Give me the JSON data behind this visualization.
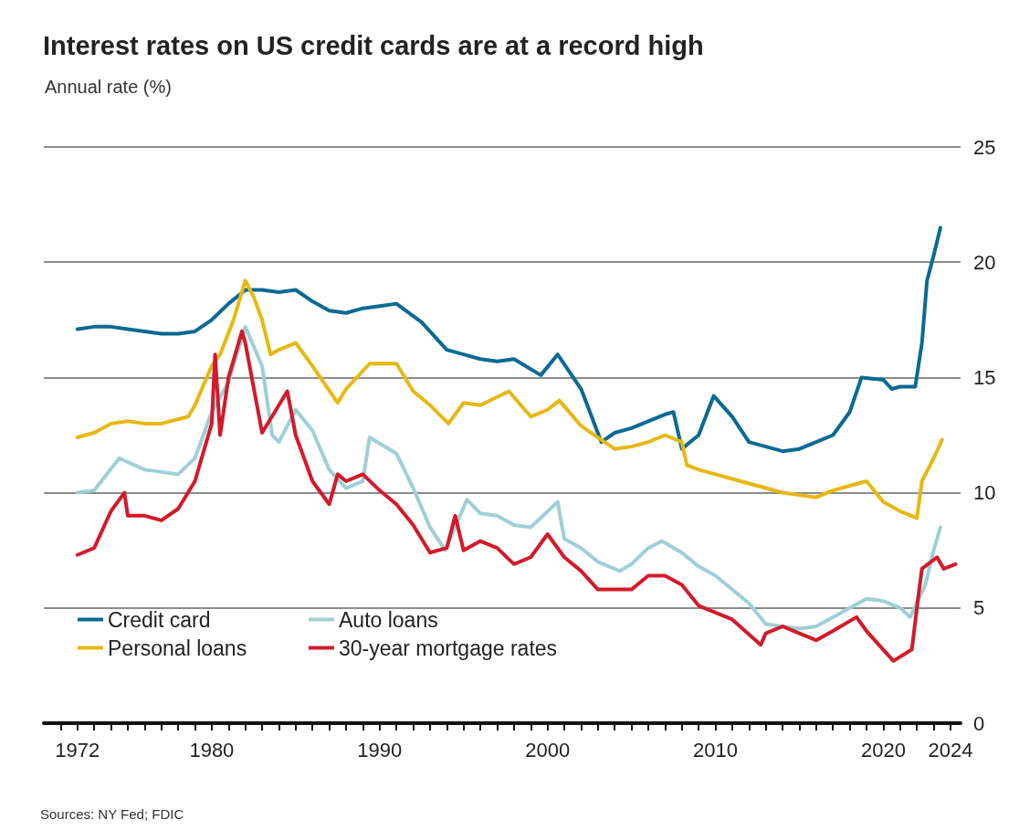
{
  "chart_data": {
    "type": "line",
    "title": "Interest rates on US credit cards are at a record high",
    "subtitle": "Annual rate (%)",
    "annotations": [
      "Sources: NY Fed; FDIC"
    ],
    "xlim": [
      1970,
      2024.6
    ],
    "xticks": [
      {
        "value": 1971,
        "label": null
      },
      {
        "value": 1972,
        "label": "1972"
      },
      {
        "value": 1973,
        "label": null
      },
      {
        "value": 1974,
        "label": null
      },
      {
        "value": 1975,
        "label": null
      },
      {
        "value": 1976,
        "label": null
      },
      {
        "value": 1977,
        "label": null
      },
      {
        "value": 1978,
        "label": null
      },
      {
        "value": 1979,
        "label": null
      },
      1980,
      {
        "value": 1981,
        "label": null
      },
      {
        "value": 1982,
        "label": null
      },
      {
        "value": 1983,
        "label": null
      },
      {
        "value": 1984,
        "label": null
      },
      {
        "value": 1985,
        "label": null
      },
      {
        "value": 1986,
        "label": null
      },
      {
        "value": 1987,
        "label": null
      },
      {
        "value": 1988,
        "label": null
      },
      {
        "value": 1989,
        "label": null
      },
      1990,
      {
        "value": 1991,
        "label": null
      },
      {
        "value": 1992,
        "label": null
      },
      {
        "value": 1993,
        "label": null
      },
      {
        "value": 1994,
        "label": null
      },
      {
        "value": 1995,
        "label": null
      },
      {
        "value": 1996,
        "label": null
      },
      {
        "value": 1997,
        "label": null
      },
      {
        "value": 1998,
        "label": null
      },
      {
        "value": 1999,
        "label": null
      },
      2000,
      {
        "value": 2001,
        "label": null
      },
      {
        "value": 2002,
        "label": null
      },
      {
        "value": 2003,
        "label": null
      },
      {
        "value": 2004,
        "label": null
      },
      {
        "value": 2005,
        "label": null
      },
      {
        "value": 2006,
        "label": null
      },
      {
        "value": 2007,
        "label": null
      },
      {
        "value": 2008,
        "label": null
      },
      {
        "value": 2009,
        "label": null
      },
      2010,
      {
        "value": 2011,
        "label": null
      },
      {
        "value": 2012,
        "label": null
      },
      {
        "value": 2013,
        "label": null
      },
      {
        "value": 2014,
        "label": null
      },
      {
        "value": 2015,
        "label": null
      },
      {
        "value": 2016,
        "label": null
      },
      {
        "value": 2017,
        "label": null
      },
      {
        "value": 2018,
        "label": null
      },
      {
        "value": 2019,
        "label": null
      },
      2020,
      {
        "value": 2021,
        "label": null
      },
      {
        "value": 2022,
        "label": null
      },
      {
        "value": 2023,
        "label": null
      },
      2024
    ],
    "ylim": [
      0,
      25
    ],
    "yticks": [
      0,
      5,
      10,
      15,
      20,
      25
    ],
    "grid": "y",
    "legend": "bottom left",
    "marker": "none",
    "line_style": "solid",
    "series": [
      {
        "name": "Credit card",
        "color": "#0b6a93",
        "x": [
          1972,
          1973,
          1974,
          1975,
          1976,
          1977,
          1978,
          1979,
          1980,
          1981,
          1982,
          1983,
          1984,
          1985,
          1986,
          1987,
          1988,
          1989,
          1990,
          1991,
          1992.5,
          1994,
          1995,
          1996,
          1997,
          1998,
          1999.6,
          2000.6,
          2002,
          2003.2,
          2004,
          2005,
          2006,
          2007,
          2007.5,
          2008,
          2009,
          2009.9,
          2011,
          2012,
          2013,
          2014,
          2015,
          2016,
          2017,
          2018,
          2018.7,
          2020,
          2020.5,
          2021,
          2021.9,
          2022.3,
          2022.6,
          2023,
          2023.4
        ],
        "values": [
          17.1,
          17.2,
          17.2,
          17.1,
          17.0,
          16.9,
          16.9,
          17.0,
          17.5,
          18.2,
          18.8,
          18.8,
          18.7,
          18.8,
          18.3,
          17.9,
          17.8,
          18.0,
          18.1,
          18.2,
          17.4,
          16.2,
          16.0,
          15.8,
          15.7,
          15.8,
          15.1,
          16.0,
          14.5,
          12.2,
          12.6,
          12.8,
          13.1,
          13.4,
          13.5,
          11.9,
          12.5,
          14.2,
          13.3,
          12.2,
          12.0,
          11.8,
          11.9,
          12.2,
          12.5,
          13.5,
          15.0,
          14.9,
          14.5,
          14.6,
          14.6,
          16.5,
          19.2,
          20.3,
          21.5
        ]
      },
      {
        "name": "Personal loans",
        "color": "#e6b812",
        "x": [
          1972,
          1973,
          1974,
          1975,
          1976,
          1977,
          1978.6,
          1979,
          1980,
          1980.5,
          1981.3,
          1982,
          1982.5,
          1983,
          1983.5,
          1984,
          1985,
          1986,
          1987.5,
          1988,
          1989.4,
          1991,
          1992,
          1993,
          1994.1,
          1995,
          1996,
          1997.7,
          1999,
          2000,
          2000.7,
          2002,
          2003,
          2004,
          2005,
          2006,
          2007,
          2008,
          2008.3,
          2009,
          2010,
          2011,
          2012,
          2013,
          2014,
          2015,
          2016,
          2017,
          2018,
          2019,
          2020,
          2021,
          2022,
          2022.3,
          2023,
          2023.5
        ],
        "values": [
          12.4,
          12.6,
          13.0,
          13.1,
          13.0,
          13.0,
          13.3,
          13.8,
          15.5,
          16.0,
          17.5,
          19.2,
          18.5,
          17.5,
          16.0,
          16.2,
          16.5,
          15.5,
          13.9,
          14.5,
          15.6,
          15.6,
          14.4,
          13.8,
          13.0,
          13.9,
          13.8,
          14.4,
          13.3,
          13.6,
          14.0,
          12.9,
          12.4,
          11.9,
          12.0,
          12.2,
          12.5,
          12.2,
          11.2,
          11.0,
          10.8,
          10.6,
          10.4,
          10.2,
          10.0,
          9.9,
          9.8,
          10.1,
          10.3,
          10.5,
          9.6,
          9.2,
          8.9,
          10.5,
          11.5,
          12.3
        ]
      },
      {
        "name": "Auto loans",
        "color": "#9fcfd6",
        "x": [
          1972,
          1973,
          1974.5,
          1976,
          1977,
          1978,
          1979,
          1980,
          1981,
          1982,
          1983,
          1983.6,
          1984,
          1985,
          1986,
          1987,
          1988,
          1989,
          1989.4,
          1991,
          1992,
          1993,
          1993.9,
          1995.2,
          1996,
          1997,
          1998,
          1999,
          2000.6,
          2001,
          2002,
          2003,
          2004.3,
          2005,
          2006,
          2006.8,
          2008,
          2009,
          2010,
          2011,
          2012,
          2013,
          2014,
          2015,
          2016,
          2017,
          2018,
          2019,
          2020,
          2021,
          2021.6,
          2022.5,
          2023,
          2023.4
        ],
        "values": [
          10.0,
          10.1,
          11.5,
          11.0,
          10.9,
          10.8,
          11.5,
          13.5,
          14.8,
          17.2,
          15.5,
          12.5,
          12.2,
          13.6,
          12.7,
          11.0,
          10.2,
          10.5,
          12.4,
          11.7,
          10.2,
          8.5,
          7.5,
          9.7,
          9.1,
          9.0,
          8.6,
          8.5,
          9.6,
          8.0,
          7.6,
          7.0,
          6.6,
          6.9,
          7.6,
          7.9,
          7.4,
          6.8,
          6.4,
          5.8,
          5.2,
          4.3,
          4.2,
          4.1,
          4.2,
          4.6,
          5.0,
          5.4,
          5.3,
          5.0,
          4.6,
          6.0,
          7.5,
          8.5
        ]
      },
      {
        "name": "30-year mortgage rates",
        "color": "#d21a2b",
        "x": [
          1972,
          1973,
          1974,
          1974.8,
          1975,
          1976,
          1977,
          1978,
          1979,
          1980,
          1980.2,
          1980.5,
          1981,
          1981.8,
          1982,
          1983,
          1984,
          1984.5,
          1985,
          1986,
          1987,
          1987.5,
          1988,
          1989,
          1990,
          1991,
          1992,
          1993,
          1994,
          1994.5,
          1995,
          1996,
          1997,
          1998,
          1999,
          2000,
          2001,
          2002,
          2003,
          2004,
          2005,
          2006,
          2007,
          2008,
          2009,
          2010,
          2011,
          2012.7,
          2013,
          2014,
          2015,
          2016,
          2017,
          2018.4,
          2019,
          2020.6,
          2021.7,
          2022.1,
          2022.3,
          2023.2,
          2023.6,
          2024.3
        ],
        "values": [
          7.3,
          7.6,
          9.2,
          10.0,
          9.0,
          9.0,
          8.8,
          9.3,
          10.5,
          13.0,
          16.0,
          12.5,
          15.0,
          17.0,
          16.5,
          12.6,
          13.8,
          14.4,
          12.5,
          10.5,
          9.5,
          10.8,
          10.5,
          10.8,
          10.1,
          9.5,
          8.6,
          7.4,
          7.6,
          9.0,
          7.5,
          7.9,
          7.6,
          6.9,
          7.2,
          8.2,
          7.2,
          6.6,
          5.8,
          5.8,
          5.8,
          6.4,
          6.4,
          6.0,
          5.1,
          4.8,
          4.5,
          3.4,
          3.9,
          4.2,
          3.9,
          3.6,
          4.0,
          4.6,
          4.0,
          2.7,
          3.2,
          5.6,
          6.7,
          7.2,
          6.7,
          6.9
        ]
      }
    ]
  }
}
